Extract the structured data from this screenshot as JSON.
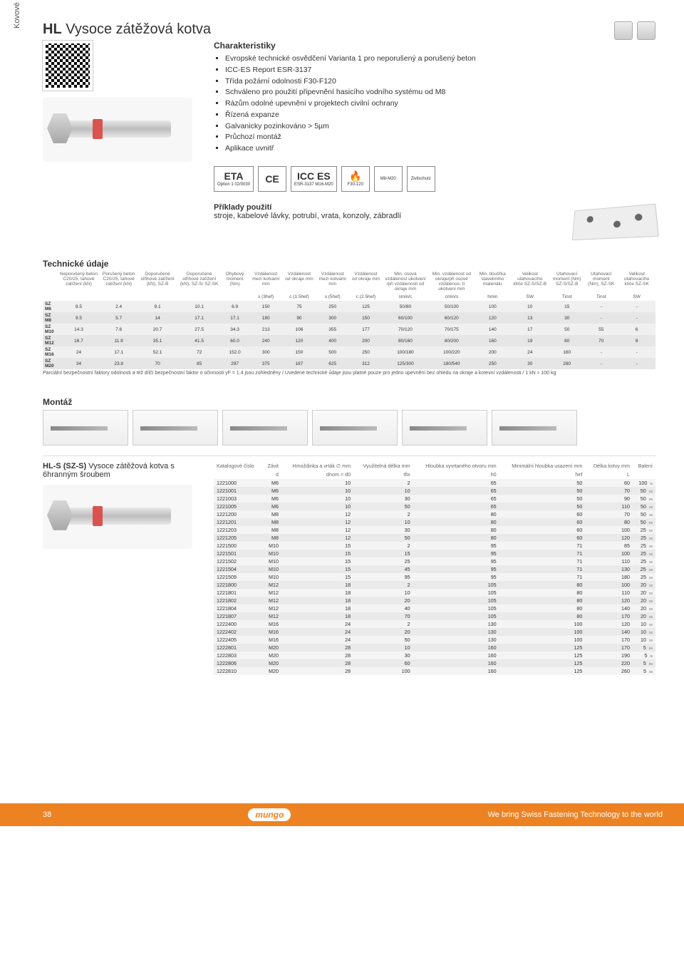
{
  "sideLabel": "Kovové výrobky",
  "title": {
    "code": "HL",
    "name": "Vysoce zátěžová kotva"
  },
  "characteristics": {
    "title": "Charakteristiky",
    "items": [
      "Evropské technické osvědčení Varianta 1 pro neporušený a porušený beton",
      "ICC-ES Report ESR-3137",
      "Třída požární odolnosti F30-F120",
      "Schváleno pro použití připevnění hasicího vodního systému od M8",
      "Rázům odolné upevnění v projektech civilní ochrany",
      "Řízená expanze",
      "Galvanicky pozinkováno > 5µm",
      "Průchozí montáž",
      "Aplikace uvnitř"
    ]
  },
  "certs": [
    {
      "top": "ETA",
      "bottom": "Option 1 02/0030"
    },
    {
      "top": "CE",
      "bottom": ""
    },
    {
      "top": "ICC ES",
      "bottom": "ESR-3137 M16-M20"
    },
    {
      "top": "🔥",
      "bottom": "F30-120"
    },
    {
      "top": "",
      "bottom": "M8-M20"
    },
    {
      "top": "",
      "bottom": "Zivilschutz"
    }
  ],
  "examples": {
    "title": "Příklady použití",
    "text": "stroje, kabelové lávky, potrubí, vrata, konzoly, zábradlí"
  },
  "techTitle": "Technické údaje",
  "techHeaders": [
    "",
    "Neporušený beton C20/25, tahové zatížení (kN)",
    "Porušený beton C20/25, tahové zatížení (kN)",
    "Doporučené střihové zatížení (kN), SZ-B",
    "Doporučené střihové zatížení (kN), SZ-S/ SZ-SK",
    "Ohybový moment (Nm)",
    "Vzdálenost mezi kotvami mm",
    "Vzdálenost od okraje mm",
    "Vzdálenost mezi kotvami mm",
    "Vzdálenost od okraje mm",
    "Min. osová vzdálenost ukotvení /při vzdálenosti od okraje mm",
    "Min. vzdálenost od okraje/při osové vzdálenos- ti ukotvení mm",
    "Min. tloušťka stavebního materiálu",
    "Velikost utahovacího klíče SZ-S/SZ-B",
    "Utahovací moment (Nm) SZ-S/SZ-B",
    "Utahovací moment (Nm), SZ-SK",
    "Velikost utahovacího klíče SZ-SK"
  ],
  "techSymbols": [
    "",
    "",
    "",
    "",
    "",
    "",
    "s (3hef)",
    "c (1.5hef)",
    "s (5hef)",
    "c (2.5hef)",
    "smin/c",
    "cmin/s",
    "hmin",
    "SW",
    "Tinst",
    "Tinst",
    "SW"
  ],
  "techRows": [
    [
      "SZ M6",
      "8.5",
      "2.4",
      "9.1",
      "10.1",
      "6.9",
      "150",
      "75",
      "250",
      "125",
      "50/80",
      "50/100",
      "100",
      "10",
      "15",
      "-",
      "-"
    ],
    [
      "SZ M8",
      "9.5",
      "5.7",
      "14",
      "17.1",
      "17.1",
      "180",
      "90",
      "300",
      "150",
      "60/100",
      "60/120",
      "120",
      "13",
      "30",
      "-",
      "-"
    ],
    [
      "SZ M10",
      "14.3",
      "7.6",
      "20.7",
      "27.5",
      "34.3",
      "213",
      "106",
      "355",
      "177",
      "70/120",
      "70/175",
      "140",
      "17",
      "50",
      "55",
      "6"
    ],
    [
      "SZ M12",
      "16.7",
      "11.9",
      "35.1",
      "41.5",
      "60.0",
      "240",
      "120",
      "400",
      "200",
      "80/160",
      "80/200",
      "160",
      "19",
      "80",
      "70",
      "8"
    ],
    [
      "SZ M16",
      "24",
      "17.1",
      "52.1",
      "72",
      "152.0",
      "300",
      "150",
      "500",
      "250",
      "100/180",
      "100/220",
      "200",
      "24",
      "160",
      "-",
      "-"
    ],
    [
      "SZ M20",
      "34",
      "23.8",
      "70",
      "85",
      "297",
      "375",
      "187",
      "625",
      "312",
      "125/300",
      "180/540",
      "250",
      "30",
      "280",
      "-",
      "-"
    ]
  ],
  "techFootnote": "Parciální bezpečnostní faktory odolnosti a též dílčí bezpečnostní faktor o účinnosti γF = 1.4 jsou zohledněny / Uvedené technické údaje jsou platné pouze pro jedno upevnění bez ohledu na okraje a kotevní vzdálenosti / 1 kN ≈ 100 kg",
  "montazTitle": "Montáž",
  "variant": {
    "code": "HL-S (SZ-S)",
    "name": "Vysoce zátěžová kotva s 6hranným šroubem"
  },
  "ordersHeaders1": [
    "Katalogové číslo",
    "Závit",
    "Hmoždinka a vrták ∅ mm",
    "Využitelná délka mm",
    "Hloubka vyvrtaného otvoru mm",
    "Minimální hloubka usazení mm",
    "Délka kotvy mm",
    "Balení"
  ],
  "ordersHeaders2": [
    "",
    "d",
    "dnom = d0",
    "tfix",
    "h0",
    "hef",
    "L",
    ""
  ],
  "ordersRows": [
    [
      "1221000",
      "M6",
      "10",
      "2",
      "65",
      "50",
      "60",
      "100",
      "is"
    ],
    [
      "1221001",
      "M6",
      "10",
      "10",
      "65",
      "50",
      "70",
      "50",
      "os"
    ],
    [
      "1221003",
      "M6",
      "10",
      "30",
      "65",
      "50",
      "90",
      "50",
      "os"
    ],
    [
      "1221005",
      "M6",
      "10",
      "50",
      "65",
      "50",
      "110",
      "50",
      "ss"
    ],
    [
      "1221200",
      "M8",
      "12",
      "2",
      "80",
      "60",
      "70",
      "50",
      "ss"
    ],
    [
      "1221201",
      "M8",
      "12",
      "10",
      "80",
      "60",
      "80",
      "50",
      "es"
    ],
    [
      "1221203",
      "M8",
      "12",
      "30",
      "80",
      "60",
      "100",
      "25",
      "os"
    ],
    [
      "1221205",
      "M8",
      "12",
      "50",
      "80",
      "60",
      "120",
      "25",
      "ss"
    ],
    [
      "1221500",
      "M10",
      "15",
      "2",
      "95",
      "71",
      "85",
      "25",
      "ss"
    ],
    [
      "1221501",
      "M10",
      "15",
      "15",
      "95",
      "71",
      "100",
      "25",
      "ss"
    ],
    [
      "1221502",
      "M10",
      "15",
      "25",
      "95",
      "71",
      "110",
      "25",
      "ss"
    ],
    [
      "1221504",
      "M10",
      "15",
      "45",
      "95",
      "71",
      "130",
      "25",
      "os"
    ],
    [
      "1221509",
      "M10",
      "15",
      "95",
      "95",
      "71",
      "180",
      "25",
      "ss"
    ],
    [
      "1221800",
      "M12",
      "18",
      "2",
      "105",
      "80",
      "100",
      "20",
      "ss"
    ],
    [
      "1221801",
      "M12",
      "18",
      "10",
      "105",
      "80",
      "110",
      "20",
      "ss"
    ],
    [
      "1221802",
      "M12",
      "18",
      "20",
      "105",
      "80",
      "120",
      "20",
      "ss"
    ],
    [
      "1221804",
      "M12",
      "18",
      "40",
      "105",
      "80",
      "140",
      "20",
      "ss"
    ],
    [
      "1221807",
      "M12",
      "18",
      "70",
      "105",
      "80",
      "170",
      "20",
      "ss"
    ],
    [
      "1222400",
      "M16",
      "24",
      "2",
      "130",
      "100",
      "120",
      "10",
      "ss"
    ],
    [
      "1222402",
      "M16",
      "24",
      "20",
      "130",
      "100",
      "140",
      "10",
      "ss"
    ],
    [
      "1222405",
      "M16",
      "24",
      "50",
      "130",
      "100",
      "170",
      "10",
      "ss"
    ],
    [
      "1222801",
      "M20",
      "28",
      "10",
      "160",
      "125",
      "170",
      "5",
      "es"
    ],
    [
      "1222803",
      "M20",
      "28",
      "30",
      "160",
      "125",
      "190",
      "5",
      "is"
    ],
    [
      "1222806",
      "M20",
      "28",
      "60",
      "160",
      "125",
      "220",
      "5",
      "es"
    ],
    [
      "1222810",
      "M20",
      "28",
      "100",
      "160",
      "125",
      "260",
      "5",
      "ss"
    ]
  ],
  "footer": {
    "page": "38",
    "brand": "mungo",
    "tagline": "We bring Swiss Fastening Technology to the world"
  },
  "colors": {
    "accent": "#ed8222",
    "red": "#d9534f",
    "rowAlt": "#e6e6e6",
    "row": "#f0f0f0"
  }
}
